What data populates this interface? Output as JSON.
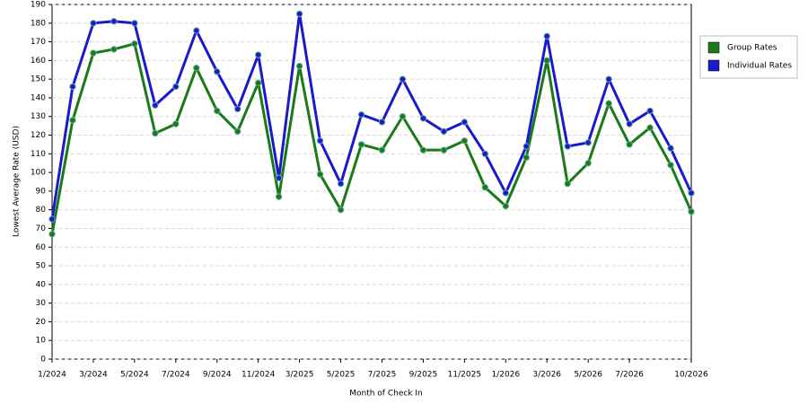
{
  "chart_data": {
    "type": "line",
    "xlabel": "Month of Check In",
    "ylabel": "Lowest Average Rate (USD)",
    "categories": [
      "1/2024",
      null,
      "3/2024",
      null,
      "5/2024",
      null,
      "7/2024",
      null,
      "9/2024",
      null,
      "11/2024",
      null,
      "3/2025",
      null,
      "5/2025",
      null,
      "7/2025",
      null,
      "9/2025",
      null,
      "11/2025",
      null,
      "1/2026",
      null,
      "3/2026",
      null,
      "5/2026",
      null,
      "7/2026",
      null,
      null,
      "10/2026"
    ],
    "series": [
      {
        "name": "Group Rates",
        "color": "#1a7a1a",
        "values": [
          67,
          128,
          164,
          166,
          169,
          121,
          126,
          156,
          133,
          122,
          148,
          87,
          157,
          99,
          80,
          115,
          112,
          130,
          112,
          112,
          117,
          92,
          82,
          108,
          160,
          94,
          105,
          137,
          115,
          124,
          104,
          79
        ]
      },
      {
        "name": "Individual Rates",
        "color": "#1a1acc",
        "values": [
          75,
          146,
          180,
          181,
          180,
          136,
          146,
          176,
          154,
          134,
          163,
          97,
          185,
          117,
          94,
          131,
          127,
          150,
          129,
          122,
          127,
          110,
          89,
          114,
          173,
          114,
          116,
          150,
          126,
          133,
          113,
          89
        ]
      }
    ],
    "ylim": [
      0,
      190
    ],
    "yticks": [
      0,
      10,
      20,
      30,
      40,
      50,
      60,
      70,
      80,
      90,
      100,
      110,
      120,
      130,
      140,
      150,
      160,
      170,
      180,
      190
    ],
    "grid": true,
    "legend": "right"
  }
}
